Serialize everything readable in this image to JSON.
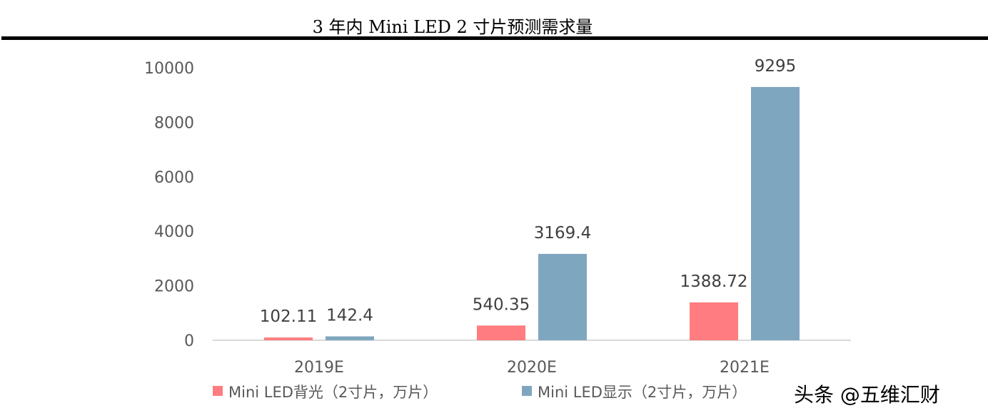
{
  "chart_data": {
    "type": "bar",
    "title": "3 年内 Mini LED 2 寸片预测需求量",
    "categories": [
      "2019E",
      "2020E",
      "2021E"
    ],
    "series": [
      {
        "name": "Mini LED背光（2寸片，万片）",
        "values": [
          102.11,
          540.35,
          1388.72
        ],
        "labels": [
          "102.11",
          "540.35",
          "1388.72"
        ],
        "color": "#FF7C80"
      },
      {
        "name": "Mini LED显示（2寸片，万片）",
        "values": [
          142.4,
          3169.4,
          9295
        ],
        "labels": [
          "142.4",
          "3169.4",
          "9295"
        ],
        "color": "#7FA6BF"
      }
    ],
    "ylim": [
      0,
      10000
    ],
    "yticks": [
      "0",
      "2000",
      "4000",
      "6000",
      "8000",
      "10000"
    ],
    "grid": false,
    "legend": "bottom"
  },
  "watermark": "头条 @五维汇财"
}
